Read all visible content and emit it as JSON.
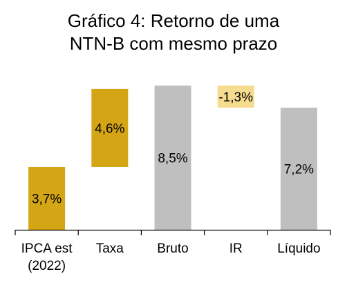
{
  "chart_data": {
    "type": "waterfall",
    "title_lines": [
      "Gráfico 4: Retorno de uma",
      "NTN-B com mesmo prazo"
    ],
    "categories": [
      [
        "IPCA est",
        "(2022)"
      ],
      [
        "Taxa"
      ],
      [
        "Bruto"
      ],
      [
        "IR"
      ],
      [
        "Líquido"
      ]
    ],
    "bars": [
      {
        "label": "3,7%",
        "start": 0,
        "end": 3.7,
        "color": "#d4a514"
      },
      {
        "label": "4,6%",
        "start": 3.7,
        "end": 8.3,
        "color": "#d4a514"
      },
      {
        "label": "8,5%",
        "start": 0,
        "end": 8.5,
        "color": "#bfbfbf"
      },
      {
        "label": "-1,3%",
        "start": 7.2,
        "end": 8.5,
        "color": "#f5dc8e"
      },
      {
        "label": "7,2%",
        "start": 0,
        "end": 7.2,
        "color": "#bfbfbf"
      }
    ],
    "ylim": [
      0,
      8.5
    ],
    "grid": false,
    "legend": "none"
  }
}
